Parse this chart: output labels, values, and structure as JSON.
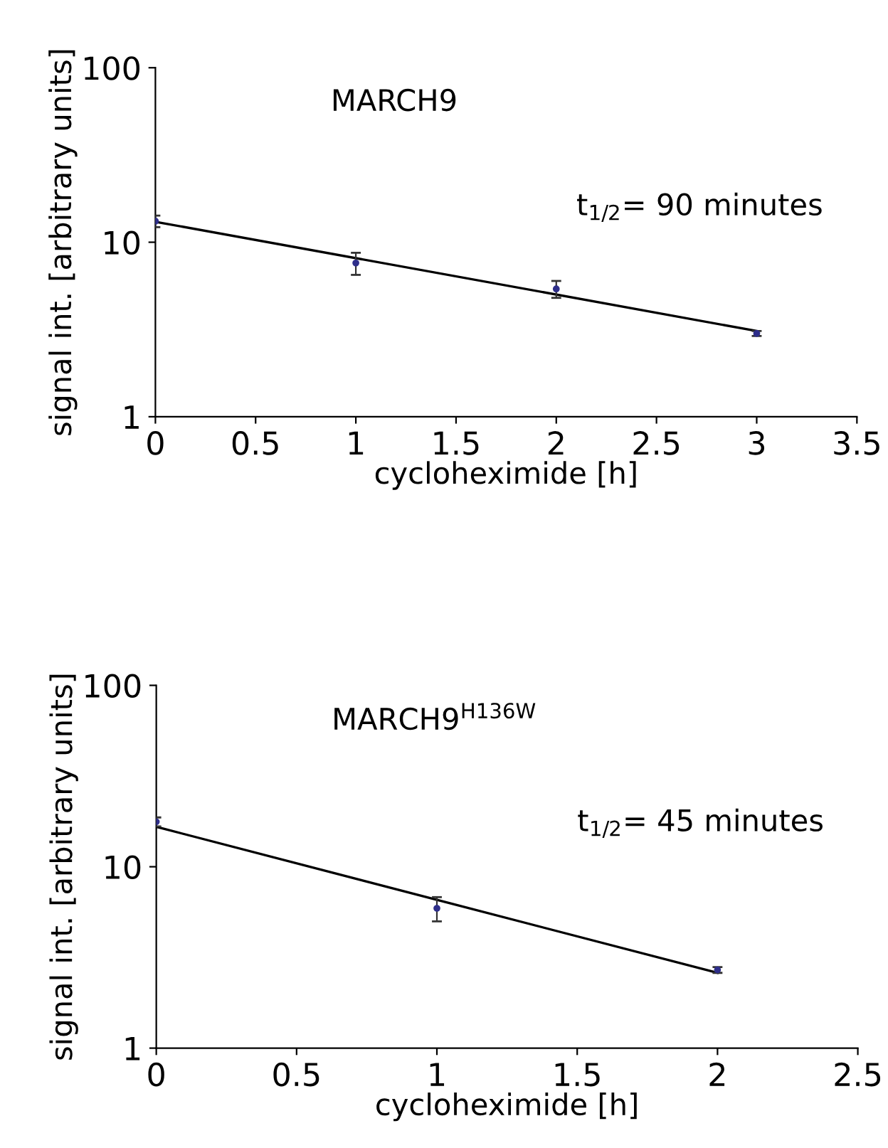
{
  "chart_data": [
    {
      "type": "scatter",
      "title": "MARCH9",
      "xlabel": "cycloheximide [h]",
      "ylabel": "signal int. [arbitrary units]",
      "log": "y",
      "xlim": [
        0,
        3.5
      ],
      "xticks": [
        0,
        0.5,
        1,
        1.5,
        2,
        2.5,
        3,
        3.5
      ],
      "ylim": [
        1,
        100
      ],
      "yticks": [
        1,
        10,
        100
      ],
      "grid": false,
      "legend": false,
      "annotations": [
        "t$_{1/2}$= 90 minutes"
      ],
      "series": [
        {
          "color": "#2e2e8a",
          "x": [
            0,
            1,
            2,
            3
          ],
          "values": [
            13.2,
            7.6,
            5.4,
            3.0
          ],
          "errors": [
            1.0,
            1.1,
            0.6,
            0.1
          ],
          "marker": "circle"
        },
        {
          "type": "line",
          "color": "#000000",
          "x": [
            0,
            3
          ],
          "values": [
            13.1,
            3.1
          ],
          "line_style": "solid"
        }
      ]
    },
    {
      "type": "scatter",
      "title": "MARCH9$^{H136W}$",
      "xlabel": "cycloheximide [h]",
      "ylabel": "signal int. [arbitrary units]",
      "log": "y",
      "xlim": [
        0,
        2.5
      ],
      "xticks": [
        0,
        0.5,
        1,
        1.5,
        2,
        2.5
      ],
      "ylim": [
        1,
        100
      ],
      "yticks": [
        1,
        10,
        100
      ],
      "grid": false,
      "legend": false,
      "annotations": [
        "t$_{1/2}$= 45 minutes"
      ],
      "series": [
        {
          "color": "#2e2e8a",
          "x": [
            0,
            1,
            2
          ],
          "values": [
            17.7,
            5.9,
            2.7
          ],
          "errors": [
            1.0,
            0.9,
            0.1
          ],
          "marker": "circle"
        },
        {
          "type": "line",
          "color": "#000000",
          "x": [
            0,
            2
          ],
          "values": [
            16.6,
            2.6
          ],
          "line_style": "solid"
        }
      ]
    }
  ]
}
